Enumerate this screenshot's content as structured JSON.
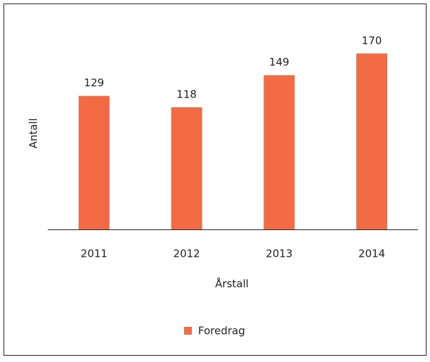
{
  "chart_data": {
    "type": "bar",
    "x_label": "Årstall",
    "y_label": "Antall",
    "categories": [
      "2011",
      "2012",
      "2013",
      "2014"
    ],
    "series": [
      {
        "name": "Foredrag",
        "color": "#f26b45",
        "values": [
          129,
          118,
          149,
          170
        ]
      }
    ],
    "ylim": [
      0,
      200
    ],
    "legend": "bottom"
  }
}
